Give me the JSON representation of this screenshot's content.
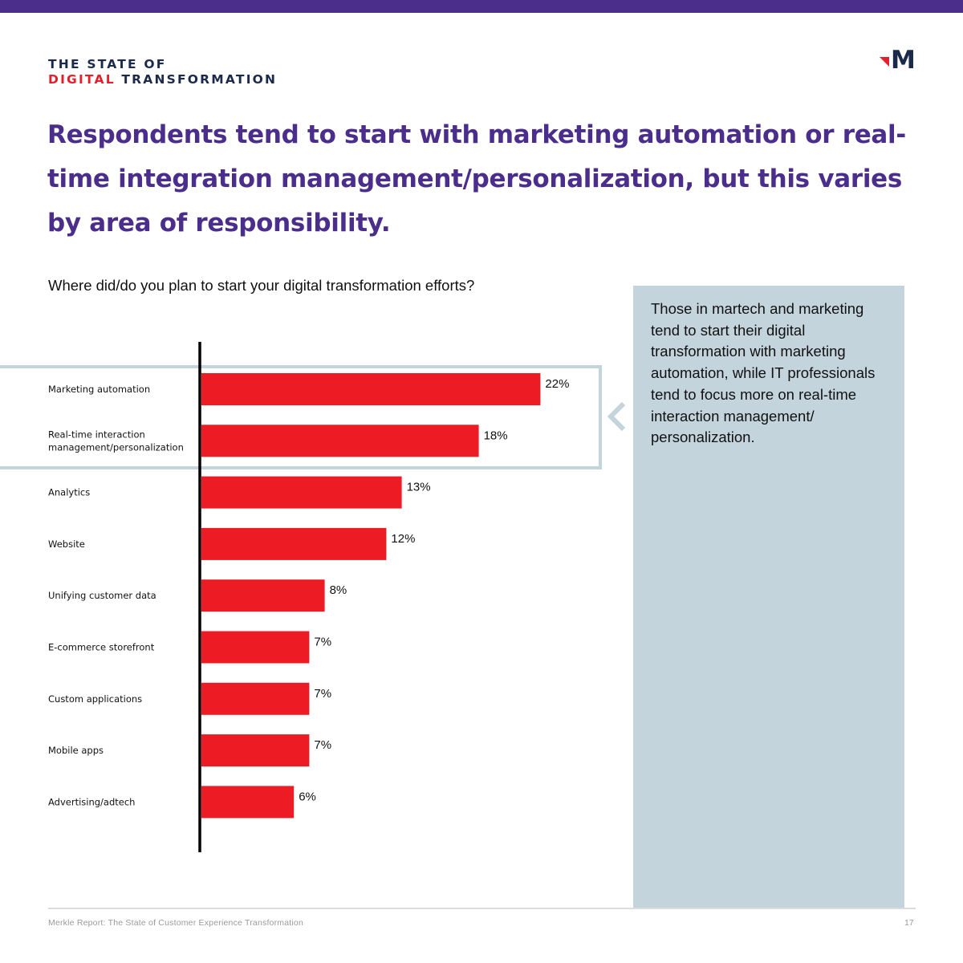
{
  "header": {
    "brand_line1": "THE STATE OF",
    "brand_line2_red": "DIGITAL",
    "brand_line2_rest": " TRANSFORMATION",
    "logo_letter": "M"
  },
  "headline": "Respondents tend to start with marketing automation or real-time integration management/personalization, but this varies by area of responsibility.",
  "question": "Where did/do you plan to start your digital transformation efforts?",
  "side_note": "Those in martech and marketing tend to start their digital transformation with marketing automation, while IT professionals tend to focus more on real-time interaction management/ personalization.",
  "footer": {
    "left": "Merkle Report: The State of Customer Experience Transformation",
    "page": "17"
  },
  "colors": {
    "bar": "#ed1c24",
    "headline": "#4b2e8c",
    "panel": "#c4d4dd",
    "top_bar": "#4b2e8c"
  },
  "icons": [
    "m-logo-icon",
    "chevron-left-icon"
  ],
  "chart_data": {
    "type": "bar",
    "orientation": "horizontal",
    "categories": [
      [
        "Marketing automation"
      ],
      [
        "Real-time interaction",
        "management/personalization"
      ],
      [
        "Analytics"
      ],
      [
        "Website"
      ],
      [
        "Unifying customer data"
      ],
      [
        "E-commerce storefront"
      ],
      [
        "Custom applications"
      ],
      [
        "Mobile apps"
      ],
      [
        "Advertising/adtech"
      ]
    ],
    "values": [
      22,
      18,
      13,
      12,
      8,
      7,
      7,
      7,
      6
    ],
    "value_labels": [
      "22%",
      "18%",
      "13%",
      "12%",
      "8%",
      "7%",
      "7%",
      "7%",
      "6%"
    ],
    "unit": "%",
    "highlighted": [
      0,
      1
    ],
    "grid": false,
    "legend": "none"
  }
}
